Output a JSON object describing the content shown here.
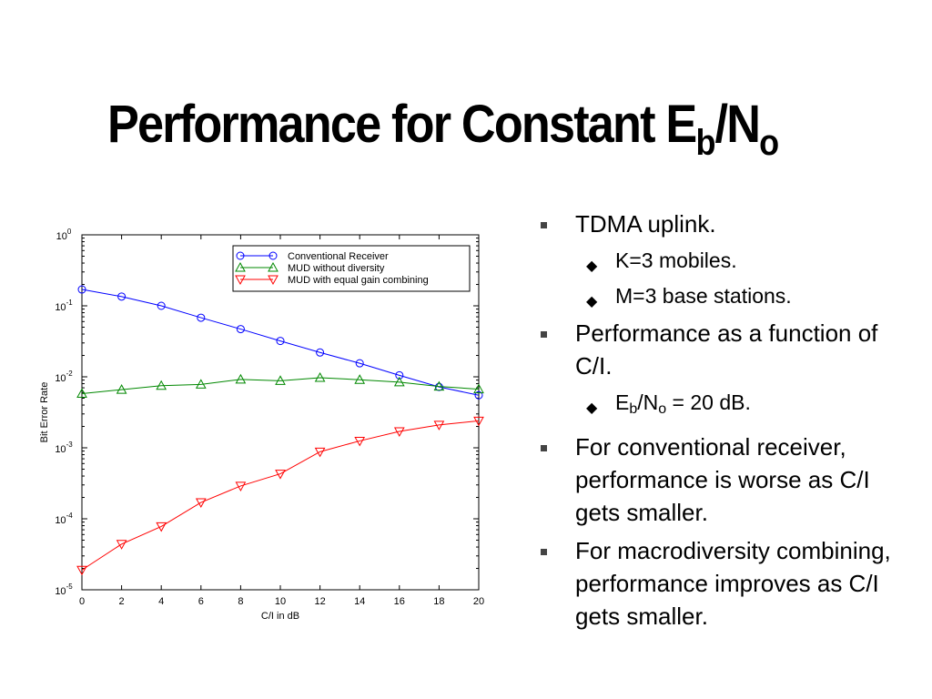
{
  "slide": {
    "title_prefix": "Performance for Constant E",
    "title_sub1": "b",
    "title_mid": "/N",
    "title_sub2": "o"
  },
  "bullets": [
    {
      "level": 1,
      "text": "TDMA uplink."
    },
    {
      "level": 2,
      "text": "K=3 mobiles."
    },
    {
      "level": 2,
      "text": "M=3 base stations."
    },
    {
      "level": 1,
      "text": "Performance as a function of C/I."
    },
    {
      "level": 2,
      "prefix": "E",
      "sub1": "b",
      "mid": "/N",
      "sub2": "o",
      "suffix": " = 20 dB."
    },
    {
      "level": 1,
      "text": "For conventional receiver, performance is worse as C/I gets smaller."
    },
    {
      "level": 1,
      "text": "For macrodiversity combining, performance improves as C/I gets smaller."
    }
  ],
  "chart_data": {
    "type": "line",
    "xlabel": "C/I in dB",
    "ylabel": "Bit Error Rate",
    "xlim": [
      0,
      20
    ],
    "ylim": [
      1e-05,
      1
    ],
    "yscale": "log",
    "xticks": [
      0,
      2,
      4,
      6,
      8,
      10,
      12,
      14,
      16,
      18,
      20
    ],
    "yticks": [
      {
        "base": "10",
        "exp": "0",
        "value": 1
      },
      {
        "base": "10",
        "exp": "-1",
        "value": 0.1
      },
      {
        "base": "10",
        "exp": "-2",
        "value": 0.01
      },
      {
        "base": "10",
        "exp": "-3",
        "value": 0.001
      },
      {
        "base": "10",
        "exp": "-4",
        "value": 0.0001
      },
      {
        "base": "10",
        "exp": "-5",
        "value": 1e-05
      }
    ],
    "grid": false,
    "legend_position": "top-right",
    "x": [
      0,
      2,
      4,
      6,
      8,
      10,
      12,
      14,
      16,
      18,
      20
    ],
    "series": [
      {
        "name": "Conventional Receiver",
        "color": "#0000ff",
        "marker": "circle",
        "values": [
          0.17,
          0.135,
          0.1,
          0.068,
          0.047,
          0.032,
          0.022,
          0.0155,
          0.0105,
          0.0072,
          0.0055
        ]
      },
      {
        "name": "MUD without diversity",
        "color": "#008800",
        "marker": "triangle-up",
        "values": [
          0.0058,
          0.0066,
          0.0075,
          0.0078,
          0.0092,
          0.0088,
          0.0097,
          0.0091,
          0.0084,
          0.0073,
          0.0067
        ]
      },
      {
        "name": "MUD with equal gain combining",
        "color": "#ff0000",
        "marker": "triangle-down",
        "values": [
          1.9e-05,
          4.4e-05,
          7.8e-05,
          0.00017,
          0.00029,
          0.00043,
          0.00088,
          0.00125,
          0.0017,
          0.0021,
          0.0024
        ]
      }
    ]
  }
}
